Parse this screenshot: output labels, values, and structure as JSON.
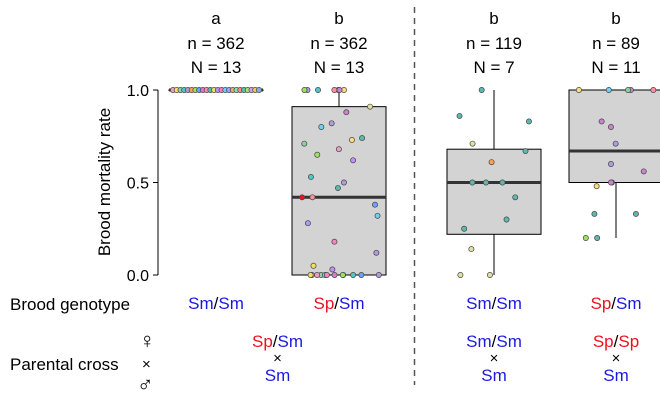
{
  "colors": {
    "red": "#e8131f",
    "blue": "#1a1adf",
    "box_fill": "#d3d3d3",
    "dashed": "#555555"
  },
  "row_labels": {
    "brood_genotype": "Brood genotype",
    "parental_cross": "Parental cross"
  },
  "sex_symbols": {
    "female": "♀",
    "cross": "×",
    "male": "♂"
  },
  "chart_data": {
    "type": "box",
    "ylabel": "Brood mortality rate",
    "ylim": [
      0.0,
      1.0
    ],
    "yticks": [
      "0.0",
      "0.5",
      "1.0"
    ],
    "dashed_separator_after_group": 2,
    "groups": [
      {
        "letter": "a",
        "n": "n = 362",
        "N": "N = 13",
        "brood_genotype": [
          {
            "text": "Sm",
            "color": "blue"
          },
          {
            "text": "/",
            "color": "black"
          },
          {
            "text": "Sm",
            "color": "blue"
          }
        ],
        "cross_female": [
          {
            "text": "Sp",
            "color": "red"
          },
          {
            "text": "/",
            "color": "black"
          },
          {
            "text": "Sm",
            "color": "blue"
          }
        ],
        "cross_male": [
          {
            "text": "Sm",
            "color": "blue"
          }
        ],
        "box": {
          "q1": 1.0,
          "median": 1.0,
          "q3": 1.0,
          "whisker_low": 1.0,
          "whisker_high": 1.0
        },
        "points": [
          [
            1.0,
            "#e8a0c8"
          ],
          [
            1.0,
            "#ffdc7a"
          ],
          [
            1.0,
            "#8cd0a0"
          ],
          [
            1.0,
            "#4fc7c7"
          ],
          [
            1.0,
            "#b09ae0"
          ],
          [
            1.0,
            "#ffa050"
          ],
          [
            1.0,
            "#a0e060"
          ],
          [
            1.0,
            "#6fa0ff"
          ],
          [
            1.0,
            "#d080d0"
          ],
          [
            1.0,
            "#ff90a0"
          ],
          [
            1.0,
            "#5fb8b0"
          ],
          [
            1.0,
            "#f0e060"
          ],
          [
            1.0,
            "#c090ff"
          ],
          [
            1.0,
            "#ff80c0"
          ],
          [
            1.0,
            "#70d0f0"
          ],
          [
            1.0,
            "#a0a0ff"
          ],
          [
            1.0,
            "#e0b070"
          ],
          [
            1.0,
            "#90e0b0"
          ],
          [
            1.0,
            "#f09090"
          ],
          [
            1.0,
            "#60c0a0"
          ],
          [
            1.0,
            "#b0e080"
          ],
          [
            1.0,
            "#d0a0f0"
          ],
          [
            1.0,
            "#ffc060"
          ],
          [
            1.0,
            "#80b0e0"
          ]
        ]
      },
      {
        "letter": "b",
        "n": "n = 362",
        "N": "N = 13",
        "brood_genotype": [
          {
            "text": "Sp",
            "color": "red"
          },
          {
            "text": "/",
            "color": "black"
          },
          {
            "text": "Sm",
            "color": "blue"
          }
        ],
        "box": {
          "q1": 0.0,
          "median": 0.42,
          "q3": 0.91,
          "whisker_low": 0.0,
          "whisker_high": 1.0
        },
        "points": [
          [
            1.0,
            "#e8a0c8"
          ],
          [
            1.0,
            "#ffdc7a"
          ],
          [
            1.0,
            "#b09ae0"
          ],
          [
            1.0,
            "#4fc7c7"
          ],
          [
            1.0,
            "#ff90a0"
          ],
          [
            1.0,
            "#d080d0"
          ],
          [
            1.0,
            "#a0e060"
          ],
          [
            0.91,
            "#e0e0a0"
          ],
          [
            0.88,
            "#d080d0"
          ],
          [
            0.82,
            "#b09ae0"
          ],
          [
            0.8,
            "#70d0f0"
          ],
          [
            0.74,
            "#5fb8b0"
          ],
          [
            0.73,
            "#ffdc7a"
          ],
          [
            0.71,
            "#8cd0a0"
          ],
          [
            0.68,
            "#e8a0c8"
          ],
          [
            0.65,
            "#a0e060"
          ],
          [
            0.62,
            "#c090ff"
          ],
          [
            0.53,
            "#4fc7c7"
          ],
          [
            0.5,
            "#b09ae0"
          ],
          [
            0.47,
            "#5fb8b0"
          ],
          [
            0.42,
            "#ff90a0"
          ],
          [
            0.42,
            "#e8131f"
          ],
          [
            0.38,
            "#6fa0ff"
          ],
          [
            0.32,
            "#70d0f0"
          ],
          [
            0.28,
            "#a0a0ff"
          ],
          [
            0.18,
            "#ff80c0"
          ],
          [
            0.12,
            "#b09ae0"
          ],
          [
            0.05,
            "#f0e060"
          ],
          [
            0.03,
            "#c090ff"
          ],
          [
            0.0,
            "#ffdc7a"
          ],
          [
            0.0,
            "#4fc7c7"
          ],
          [
            0.0,
            "#8cd0a0"
          ],
          [
            0.0,
            "#ff90a0"
          ],
          [
            0.0,
            "#b09ae0"
          ],
          [
            0.0,
            "#d080d0"
          ],
          [
            0.0,
            "#e8a0c8"
          ],
          [
            0.0,
            "#a0e060"
          ],
          [
            0.0,
            "#70d0f0"
          ],
          [
            0.0,
            "#f0e060"
          ],
          [
            0.0,
            "#6fa0ff"
          ],
          [
            0.0,
            "#ff80c0"
          ]
        ]
      },
      {
        "letter": "b",
        "n": "n = 119",
        "N": "N = 7",
        "brood_genotype": [
          {
            "text": "Sm",
            "color": "blue"
          },
          {
            "text": "/",
            "color": "black"
          },
          {
            "text": "Sm",
            "color": "blue"
          }
        ],
        "cross_female": [
          {
            "text": "Sm",
            "color": "blue"
          },
          {
            "text": "/",
            "color": "black"
          },
          {
            "text": "Sm",
            "color": "blue"
          }
        ],
        "cross_male": [
          {
            "text": "Sm",
            "color": "blue"
          }
        ],
        "box": {
          "q1": 0.22,
          "median": 0.5,
          "q3": 0.68,
          "whisker_low": 0.0,
          "whisker_high": 1.0
        },
        "points": [
          [
            1.0,
            "#5fb8b0"
          ],
          [
            0.86,
            "#5fb8b0"
          ],
          [
            0.83,
            "#5fb8b0"
          ],
          [
            0.71,
            "#e0e0a0"
          ],
          [
            0.67,
            "#5fb8b0"
          ],
          [
            0.61,
            "#ffa050"
          ],
          [
            0.5,
            "#5fb8b0"
          ],
          [
            0.5,
            "#5fb8b0"
          ],
          [
            0.5,
            "#5fb8b0"
          ],
          [
            0.42,
            "#5fb8b0"
          ],
          [
            0.3,
            "#5fb8b0"
          ],
          [
            0.25,
            "#5fb8b0"
          ],
          [
            0.14,
            "#e0e0a0"
          ],
          [
            0.0,
            "#e0e0a0"
          ],
          [
            0.0,
            "#e0e0a0"
          ]
        ]
      },
      {
        "letter": "b",
        "n": "n = 89",
        "N": "N = 11",
        "brood_genotype": [
          {
            "text": "Sp",
            "color": "red"
          },
          {
            "text": "/",
            "color": "black"
          },
          {
            "text": "Sm",
            "color": "blue"
          }
        ],
        "cross_female": [
          {
            "text": "Sp",
            "color": "red"
          },
          {
            "text": "/",
            "color": "black"
          },
          {
            "text": "Sp",
            "color": "red"
          }
        ],
        "cross_male": [
          {
            "text": "Sm",
            "color": "blue"
          }
        ],
        "box": {
          "q1": 0.5,
          "median": 0.67,
          "q3": 1.0,
          "whisker_low": 0.2,
          "whisker_high": 1.0
        },
        "points": [
          [
            1.0,
            "#ffdc7a"
          ],
          [
            1.0,
            "#70d0f0"
          ],
          [
            1.0,
            "#d080d0"
          ],
          [
            1.0,
            "#8cd0a0"
          ],
          [
            1.0,
            "#ff90a0"
          ],
          [
            0.83,
            "#d080d0"
          ],
          [
            0.8,
            "#d080d0"
          ],
          [
            0.71,
            "#b09ae0"
          ],
          [
            0.6,
            "#b09ae0"
          ],
          [
            0.56,
            "#d080d0"
          ],
          [
            0.5,
            "#5fb8b0"
          ],
          [
            0.5,
            "#d080d0"
          ],
          [
            0.48,
            "#ffdc7a"
          ],
          [
            0.33,
            "#5fb8b0"
          ],
          [
            0.33,
            "#5fb8b0"
          ],
          [
            0.2,
            "#a0e060"
          ],
          [
            0.2,
            "#5fb8b0"
          ]
        ]
      }
    ]
  }
}
